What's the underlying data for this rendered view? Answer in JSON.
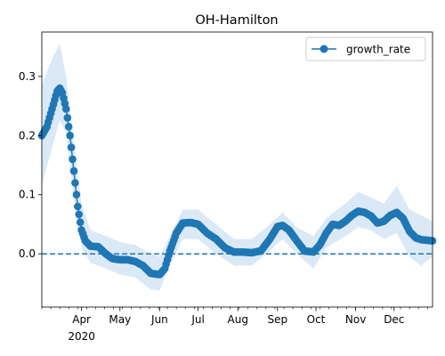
{
  "chart_data": {
    "type": "line",
    "title": "OH-Hamilton",
    "xlabel": "",
    "ylabel": "",
    "x_start": "2020-03-01",
    "x_end": "2020-12-31",
    "ylim": [
      -0.09,
      0.375
    ],
    "month_ticks": [
      {
        "label": "Apr",
        "date": "2020-04-01"
      },
      {
        "label": "May",
        "date": "2020-05-01"
      },
      {
        "label": "Jun",
        "date": "2020-06-01"
      },
      {
        "label": "Jul",
        "date": "2020-07-01"
      },
      {
        "label": "Aug",
        "date": "2020-08-01"
      },
      {
        "label": "Sep",
        "date": "2020-09-01"
      },
      {
        "label": "Oct",
        "date": "2020-10-01"
      },
      {
        "label": "Nov",
        "date": "2020-11-01"
      },
      {
        "label": "Dec",
        "date": "2020-12-01"
      }
    ],
    "year_label": "2020",
    "y_ticks": [
      "0.0",
      "0.1",
      "0.2",
      "0.3"
    ],
    "y_tick_values": [
      0.0,
      0.1,
      0.2,
      0.3
    ],
    "reference_line": {
      "y": 0.0,
      "style": "dashed"
    },
    "legend": {
      "placement": "top-right"
    },
    "colors": {
      "line": "#1f77b4",
      "band": "#dbe9f6"
    },
    "series": [
      {
        "name": "growth_rate",
        "points": [
          [
            "2020-03-01",
            0.2
          ],
          [
            "2020-03-05",
            0.215
          ],
          [
            "2020-03-09",
            0.245
          ],
          [
            "2020-03-13",
            0.275
          ],
          [
            "2020-03-15",
            0.28
          ],
          [
            "2020-03-17",
            0.272
          ],
          [
            "2020-03-20",
            0.245
          ],
          [
            "2020-03-23",
            0.2
          ],
          [
            "2020-03-26",
            0.14
          ],
          [
            "2020-03-29",
            0.08
          ],
          [
            "2020-04-01",
            0.04
          ],
          [
            "2020-04-04",
            0.022
          ],
          [
            "2020-04-08",
            0.013
          ],
          [
            "2020-04-14",
            0.012
          ],
          [
            "2020-04-20",
            0.0
          ],
          [
            "2020-04-25",
            -0.008
          ],
          [
            "2020-05-01",
            -0.01
          ],
          [
            "2020-05-07",
            -0.01
          ],
          [
            "2020-05-13",
            -0.013
          ],
          [
            "2020-05-19",
            -0.02
          ],
          [
            "2020-05-25",
            -0.033
          ],
          [
            "2020-06-01",
            -0.035
          ],
          [
            "2020-06-05",
            -0.025
          ],
          [
            "2020-06-09",
            0.005
          ],
          [
            "2020-06-14",
            0.035
          ],
          [
            "2020-06-19",
            0.052
          ],
          [
            "2020-06-25",
            0.053
          ],
          [
            "2020-07-01",
            0.05
          ],
          [
            "2020-07-08",
            0.035
          ],
          [
            "2020-07-15",
            0.025
          ],
          [
            "2020-07-22",
            0.01
          ],
          [
            "2020-07-29",
            0.003
          ],
          [
            "2020-08-05",
            0.003
          ],
          [
            "2020-08-12",
            0.002
          ],
          [
            "2020-08-19",
            0.005
          ],
          [
            "2020-08-26",
            0.025
          ],
          [
            "2020-09-01",
            0.046
          ],
          [
            "2020-09-05",
            0.048
          ],
          [
            "2020-09-10",
            0.04
          ],
          [
            "2020-09-16",
            0.022
          ],
          [
            "2020-09-22",
            0.005
          ],
          [
            "2020-09-29",
            0.003
          ],
          [
            "2020-10-04",
            0.015
          ],
          [
            "2020-10-09",
            0.035
          ],
          [
            "2020-10-14",
            0.05
          ],
          [
            "2020-10-19",
            0.048
          ],
          [
            "2020-10-24",
            0.055
          ],
          [
            "2020-10-29",
            0.065
          ],
          [
            "2020-11-03",
            0.072
          ],
          [
            "2020-11-08",
            0.07
          ],
          [
            "2020-11-13",
            0.064
          ],
          [
            "2020-11-18",
            0.052
          ],
          [
            "2020-11-23",
            0.055
          ],
          [
            "2020-11-28",
            0.065
          ],
          [
            "2020-12-03",
            0.07
          ],
          [
            "2020-12-08",
            0.06
          ],
          [
            "2020-12-13",
            0.038
          ],
          [
            "2020-12-18",
            0.027
          ],
          [
            "2020-12-22",
            0.024
          ],
          [
            "2020-12-31",
            0.022
          ]
        ],
        "band": [
          [
            "2020-03-01",
            0.115,
            0.285
          ],
          [
            "2020-03-09",
            0.18,
            0.33
          ],
          [
            "2020-03-15",
            0.225,
            0.355
          ],
          [
            "2020-03-20",
            0.205,
            0.3
          ],
          [
            "2020-03-26",
            0.095,
            0.19
          ],
          [
            "2020-04-01",
            0.01,
            0.085
          ],
          [
            "2020-04-08",
            -0.015,
            0.04
          ],
          [
            "2020-04-20",
            -0.025,
            0.03
          ],
          [
            "2020-05-01",
            -0.035,
            0.02
          ],
          [
            "2020-05-13",
            -0.04,
            0.015
          ],
          [
            "2020-05-25",
            -0.06,
            0.0
          ],
          [
            "2020-06-01",
            -0.062,
            -0.005
          ],
          [
            "2020-06-09",
            -0.02,
            0.03
          ],
          [
            "2020-06-19",
            0.025,
            0.075
          ],
          [
            "2020-07-01",
            0.025,
            0.075
          ],
          [
            "2020-07-15",
            0.0,
            0.05
          ],
          [
            "2020-07-29",
            -0.02,
            0.025
          ],
          [
            "2020-08-12",
            -0.02,
            0.025
          ],
          [
            "2020-08-26",
            0.005,
            0.05
          ],
          [
            "2020-09-05",
            0.025,
            0.07
          ],
          [
            "2020-09-16",
            0.0,
            0.045
          ],
          [
            "2020-09-29",
            -0.025,
            0.03
          ],
          [
            "2020-10-09",
            0.01,
            0.06
          ],
          [
            "2020-10-24",
            0.03,
            0.085
          ],
          [
            "2020-11-03",
            0.045,
            0.105
          ],
          [
            "2020-11-13",
            0.04,
            0.095
          ],
          [
            "2020-11-23",
            0.025,
            0.085
          ],
          [
            "2020-12-03",
            0.035,
            0.115
          ],
          [
            "2020-12-13",
            -0.005,
            0.075
          ],
          [
            "2020-12-22",
            -0.02,
            0.065
          ],
          [
            "2020-12-31",
            -0.005,
            0.055
          ]
        ]
      }
    ]
  }
}
